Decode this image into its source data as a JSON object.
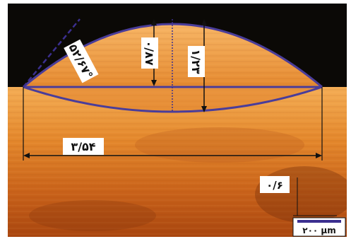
{
  "image": {
    "description_colors": {
      "background_top": "#0a0806",
      "metal_light": "#f2a64a",
      "metal_mid": "#d9741c",
      "metal_dark": "#9c3c0e",
      "outline": "#4a3d9a",
      "scale_bar": "#3b2f8f"
    }
  },
  "labels": {
    "angle": "۵۲/۶۷°",
    "height_cap": "۰/۸۷",
    "depth_total": "۱/۲۳",
    "width": "۳/۵۴",
    "small": "۰/۶"
  },
  "scale_bar": {
    "text": "۲۰۰ µm"
  }
}
